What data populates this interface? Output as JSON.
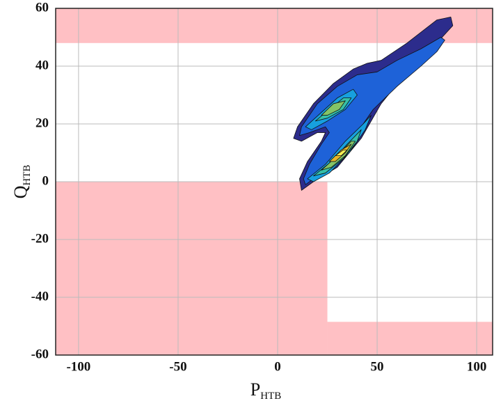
{
  "chart_data": {
    "type": "contour",
    "xlabel": {
      "main": "P",
      "sub": "HTB"
    },
    "ylabel": {
      "main": "Q",
      "sub": "HTB"
    },
    "xlim": [
      -111.5,
      108
    ],
    "ylim": [
      -60,
      60
    ],
    "xticks": [
      -100,
      -50,
      0,
      50,
      100
    ],
    "yticks": [
      -60,
      -40,
      -20,
      0,
      20,
      40,
      60
    ],
    "grid": true,
    "region_color": "#ffc0c4",
    "regions": [
      {
        "x": [
          -111.5,
          108
        ],
        "y": [
          48,
          60
        ]
      },
      {
        "x": [
          -111.5,
          25
        ],
        "y": [
          -60,
          0
        ]
      },
      {
        "x": [
          25,
          108
        ],
        "y": [
          -60,
          -48.5
        ]
      }
    ],
    "levels": [
      {
        "color": "#2c2c8c",
        "polygons": [
          [
            [
              12,
              -3
            ],
            [
              18,
              0
            ],
            [
              30,
              5
            ],
            [
              42,
              15
            ],
            [
              52,
              27
            ],
            [
              65,
              38
            ],
            [
              80,
              48
            ],
            [
              88,
              54
            ],
            [
              87,
              57
            ],
            [
              80,
              56
            ],
            [
              65,
              48
            ],
            [
              52,
              42
            ],
            [
              45,
              41
            ],
            [
              38,
              39
            ],
            [
              28,
              34
            ],
            [
              18,
              27
            ],
            [
              10,
              19
            ],
            [
              8,
              15
            ],
            [
              12,
              14
            ],
            [
              20,
              17
            ],
            [
              24,
              17
            ],
            [
              22,
              14
            ],
            [
              15,
              7
            ],
            [
              11,
              1
            ]
          ]
        ]
      },
      {
        "color": "#1e62d8",
        "polygons": [
          [
            [
              14,
              -1
            ],
            [
              26,
              5
            ],
            [
              38,
              15
            ],
            [
              48,
              25
            ],
            [
              60,
              33
            ],
            [
              72,
              40
            ],
            [
              80,
              45
            ],
            [
              84,
              49
            ],
            [
              82,
              50
            ],
            [
              72,
              46
            ],
            [
              60,
              42
            ],
            [
              50,
              38
            ],
            [
              40,
              37
            ],
            [
              30,
              33
            ],
            [
              20,
              27
            ],
            [
              12,
              19
            ],
            [
              11,
              16
            ],
            [
              16,
              17
            ],
            [
              24,
              19
            ],
            [
              26,
              17
            ],
            [
              22,
              13
            ],
            [
              16,
              6
            ],
            [
              13,
              1
            ]
          ]
        ]
      },
      {
        "color": "#17a0de",
        "polygons": [
          [
            [
              14,
              19
            ],
            [
              22,
              24
            ],
            [
              30,
              29
            ],
            [
              38,
              32
            ],
            [
              40,
              30
            ],
            [
              34,
              25
            ],
            [
              25,
              21
            ],
            [
              17,
              18
            ]
          ],
          [
            [
              15,
              1
            ],
            [
              24,
              6
            ],
            [
              34,
              14
            ],
            [
              43,
              20
            ],
            [
              47,
              23
            ],
            [
              44,
              18
            ],
            [
              36,
              10
            ],
            [
              26,
              3
            ],
            [
              18,
              0
            ]
          ]
        ]
      },
      {
        "color": "#36bfa6",
        "polygons": [
          [
            [
              19,
              21
            ],
            [
              26,
              25
            ],
            [
              33,
              29
            ],
            [
              37,
              29
            ],
            [
              33,
              25
            ],
            [
              25,
              22
            ]
          ],
          [
            [
              18,
              2
            ],
            [
              27,
              7
            ],
            [
              35,
              13
            ],
            [
              42,
              18
            ],
            [
              40,
              14
            ],
            [
              33,
              8
            ],
            [
              24,
              3
            ]
          ]
        ]
      },
      {
        "color": "#84c466",
        "polygons": [
          [
            [
              22,
              23
            ],
            [
              28,
              27
            ],
            [
              34,
              28
            ],
            [
              31,
              25
            ],
            [
              25,
              23
            ]
          ],
          [
            [
              22,
              4
            ],
            [
              30,
              9
            ],
            [
              37,
              14
            ],
            [
              39,
              14
            ],
            [
              34,
              9
            ],
            [
              27,
              5
            ]
          ]
        ]
      },
      {
        "color": "#e6b628",
        "polygons": [
          [
            [
              26,
              7
            ],
            [
              32,
              11
            ],
            [
              37,
              13
            ],
            [
              34,
              10
            ],
            [
              29,
              7
            ]
          ]
        ]
      },
      {
        "color": "#f6f050",
        "polygons": [
          [
            [
              29,
              9
            ],
            [
              33,
              11
            ],
            [
              35,
              11
            ],
            [
              32,
              9
            ]
          ]
        ]
      }
    ]
  }
}
